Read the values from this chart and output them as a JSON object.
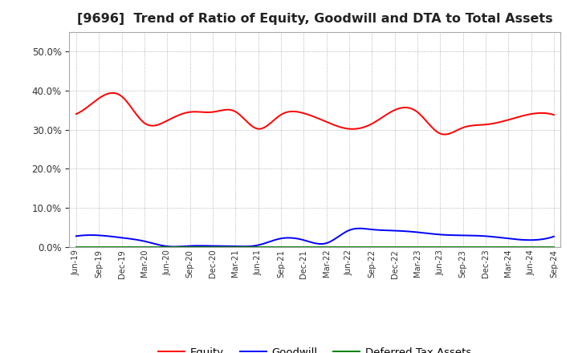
{
  "title": "[9696]  Trend of Ratio of Equity, Goodwill and DTA to Total Assets",
  "x_labels": [
    "Jun-19",
    "Sep-19",
    "Dec-19",
    "Mar-20",
    "Jun-20",
    "Sep-20",
    "Dec-20",
    "Mar-21",
    "Jun-21",
    "Sep-21",
    "Dec-21",
    "Mar-22",
    "Jun-22",
    "Sep-22",
    "Dec-22",
    "Mar-23",
    "Jun-23",
    "Sep-23",
    "Dec-23",
    "Mar-24",
    "Jun-24",
    "Sep-24"
  ],
  "equity": [
    34.0,
    38.0,
    38.5,
    31.7,
    32.3,
    34.5,
    34.5,
    34.6,
    30.2,
    33.8,
    34.2,
    32.0,
    30.2,
    31.5,
    35.0,
    34.5,
    29.0,
    30.5,
    31.3,
    32.5,
    34.0,
    33.8
  ],
  "goodwill": [
    2.8,
    3.0,
    2.4,
    1.5,
    0.2,
    0.3,
    0.3,
    0.2,
    0.5,
    2.2,
    1.8,
    1.0,
    4.3,
    4.5,
    4.2,
    3.8,
    3.2,
    3.0,
    2.8,
    2.2,
    1.8,
    2.7
  ],
  "dta": [
    0.05,
    0.05,
    0.05,
    0.05,
    0.05,
    0.05,
    0.05,
    0.05,
    0.05,
    0.05,
    0.05,
    0.05,
    0.05,
    0.05,
    0.05,
    0.05,
    0.05,
    0.05,
    0.05,
    0.05,
    0.05,
    0.05
  ],
  "equity_color": "#ff0000",
  "goodwill_color": "#0000ff",
  "dta_color": "#008000",
  "ylim": [
    0.0,
    55.0
  ],
  "yticks": [
    0.0,
    10.0,
    20.0,
    30.0,
    40.0,
    50.0
  ],
  "background_color": "#ffffff",
  "plot_bg_color": "#ffffff",
  "grid_color": "#999999",
  "title_fontsize": 11.5,
  "legend_labels": [
    "Equity",
    "Goodwill",
    "Deferred Tax Assets"
  ]
}
